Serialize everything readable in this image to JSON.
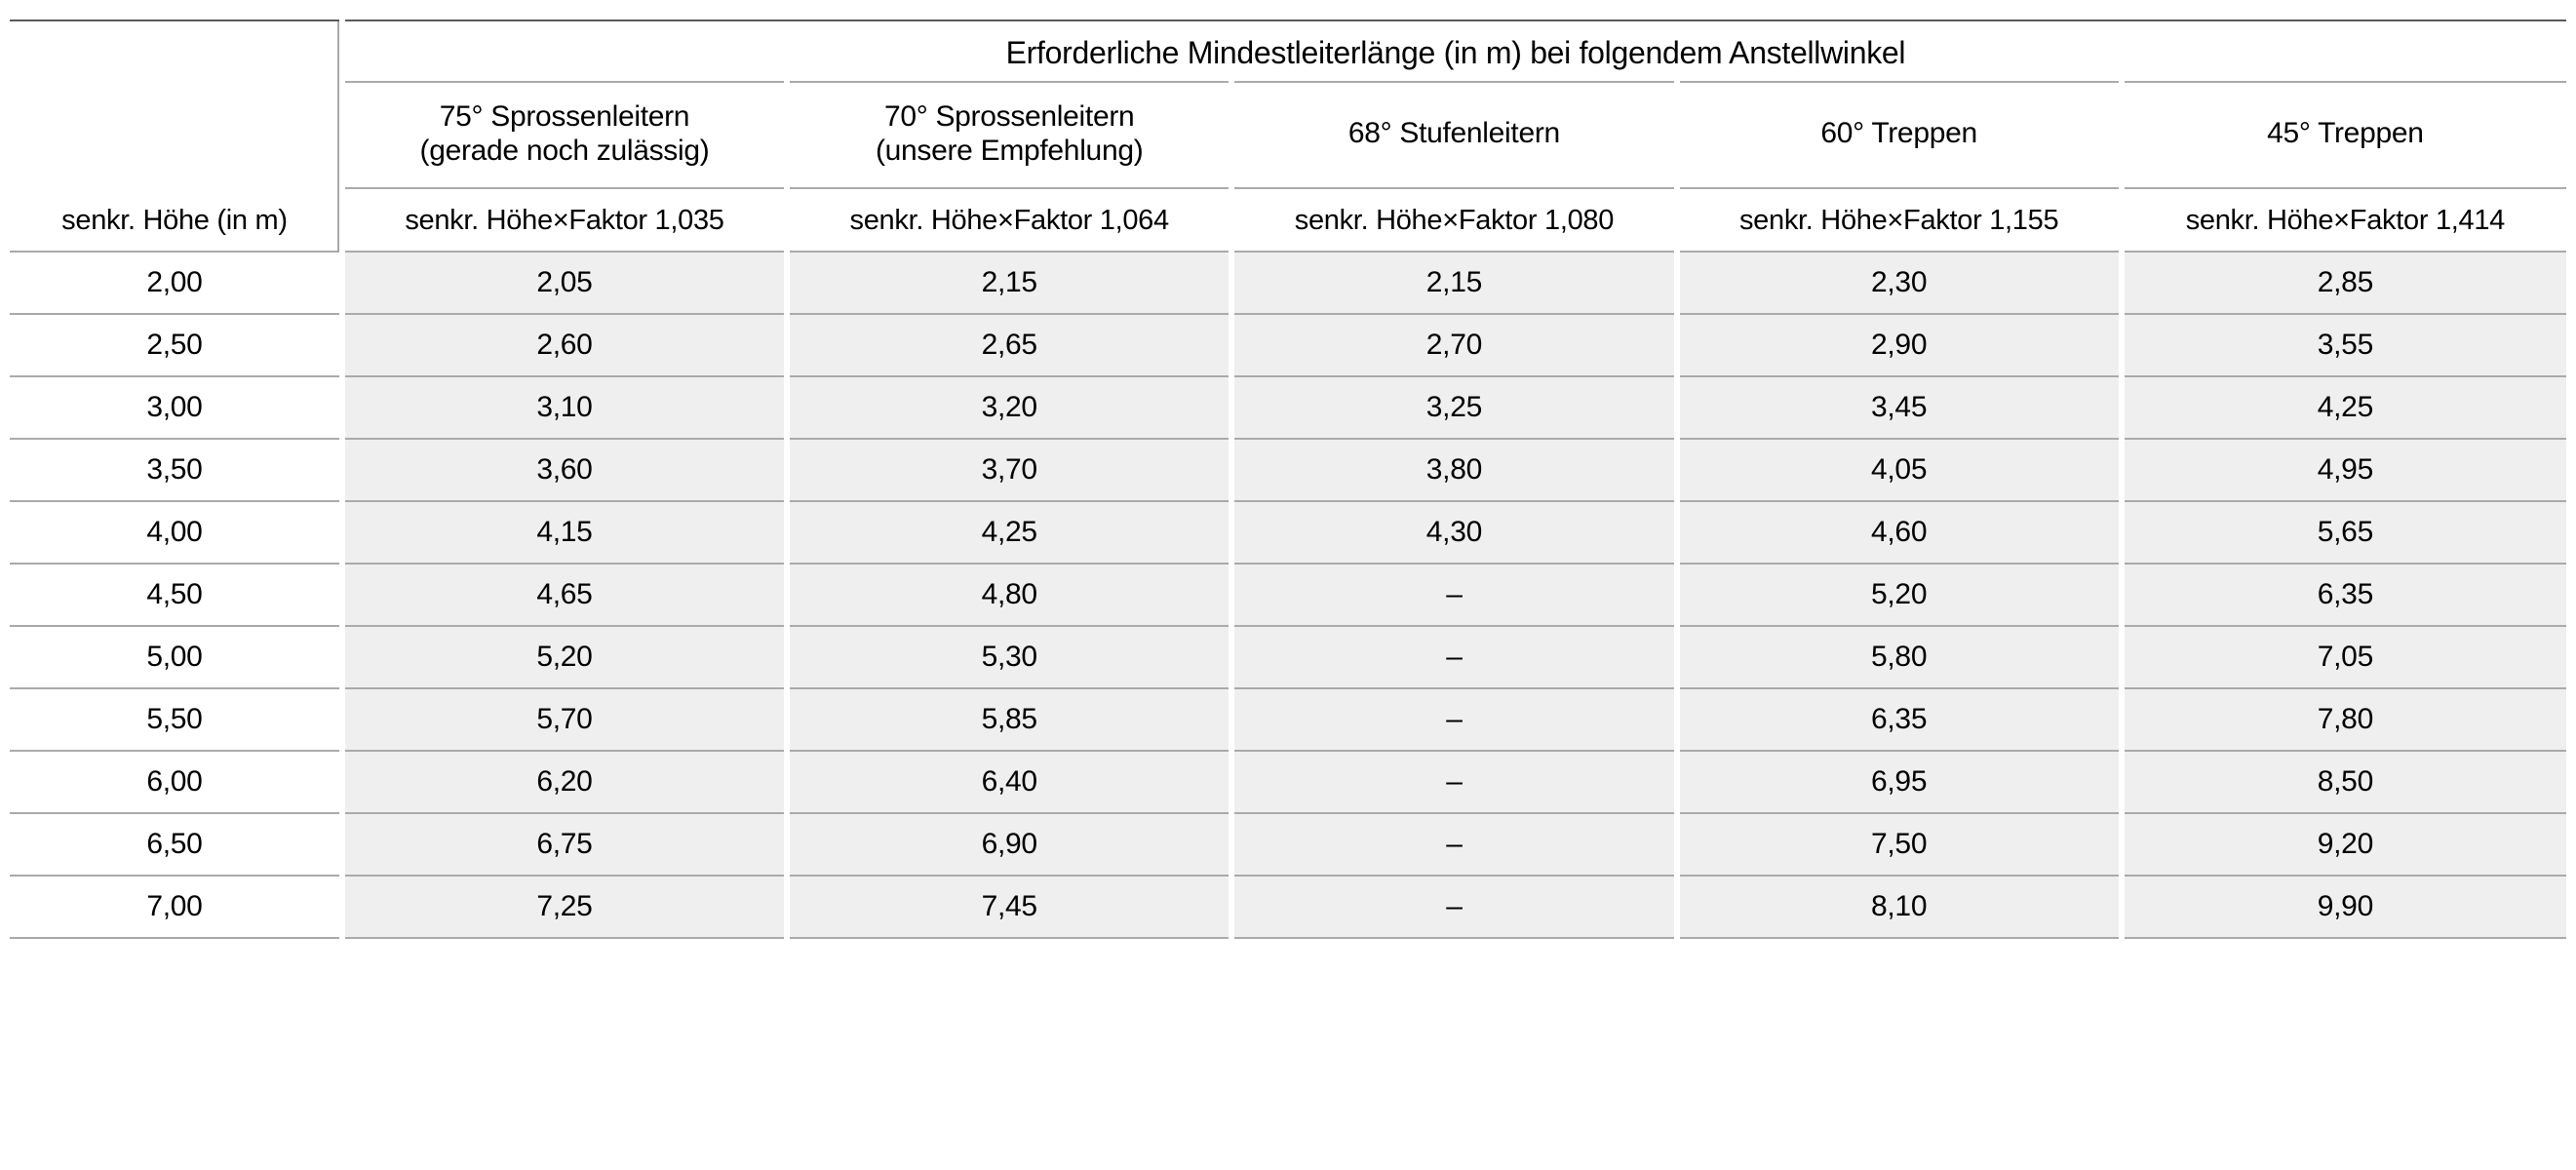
{
  "table": {
    "type": "table",
    "background_color": "#ffffff",
    "shade_color": "#efefef",
    "border_color": "#aaaaaa",
    "top_rule_color": "#5a5a5a",
    "column_separator_color": "#ffffff",
    "font_family": "Arial Narrow",
    "header_span_label": "Erforderliche Mindestleiterlänge (in m) bei folgendem Anstellwinkel",
    "header_span_fontsize": 32,
    "col_header_fontsize": 30,
    "factor_row_fontsize": 29,
    "body_fontsize": 30,
    "row_header_label": "senkr. Höhe (in m)",
    "columns": [
      {
        "angle_label": "75° Sprossenleitern",
        "qualifier": "(gerade noch zulässig)",
        "factor_label": "senkr. Höhe×Faktor 1,035"
      },
      {
        "angle_label": "70° Sprossenleitern",
        "qualifier": "(unsere Empfehlung)",
        "factor_label": "senkr. Höhe×Faktor 1,064"
      },
      {
        "angle_label": "68° Stufenleitern",
        "qualifier": "",
        "factor_label": "senkr. Höhe×Faktor 1,080"
      },
      {
        "angle_label": "60° Treppen",
        "qualifier": "",
        "factor_label": "senkr. Höhe×Faktor 1,155"
      },
      {
        "angle_label": "45° Treppen",
        "qualifier": "",
        "factor_label": "senkr. Höhe×Faktor 1,414"
      }
    ],
    "rows": [
      {
        "height": "2,00",
        "values": [
          "2,05",
          "2,15",
          "2,15",
          "2,30",
          "2,85"
        ]
      },
      {
        "height": "2,50",
        "values": [
          "2,60",
          "2,65",
          "2,70",
          "2,90",
          "3,55"
        ]
      },
      {
        "height": "3,00",
        "values": [
          "3,10",
          "3,20",
          "3,25",
          "3,45",
          "4,25"
        ]
      },
      {
        "height": "3,50",
        "values": [
          "3,60",
          "3,70",
          "3,80",
          "4,05",
          "4,95"
        ]
      },
      {
        "height": "4,00",
        "values": [
          "4,15",
          "4,25",
          "4,30",
          "4,60",
          "5,65"
        ]
      },
      {
        "height": "4,50",
        "values": [
          "4,65",
          "4,80",
          "–",
          "5,20",
          "6,35"
        ]
      },
      {
        "height": "5,00",
        "values": [
          "5,20",
          "5,30",
          "–",
          "5,80",
          "7,05"
        ]
      },
      {
        "height": "5,50",
        "values": [
          "5,70",
          "5,85",
          "–",
          "6,35",
          "7,80"
        ]
      },
      {
        "height": "6,00",
        "values": [
          "6,20",
          "6,40",
          "–",
          "6,95",
          "8,50"
        ]
      },
      {
        "height": "6,50",
        "values": [
          "6,75",
          "6,90",
          "–",
          "7,50",
          "9,20"
        ]
      },
      {
        "height": "7,00",
        "values": [
          "7,25",
          "7,45",
          "–",
          "8,10",
          "9,90"
        ]
      }
    ],
    "column_widths_pct": [
      13,
      17.4,
      17.4,
      17.4,
      17.4,
      17.4
    ]
  }
}
